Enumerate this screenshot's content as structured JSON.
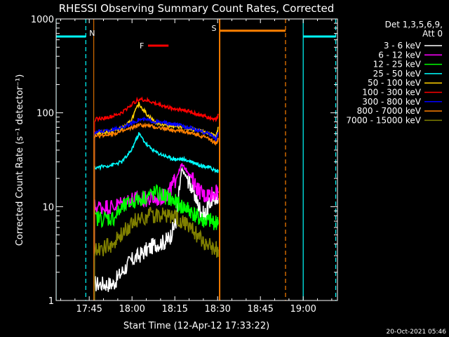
{
  "chart_data": {
    "type": "line",
    "title": "RHESSI Observing Summary Count Rates, Corrected",
    "xlabel": "Start Time (12-Apr-12 17:33:22)",
    "ylabel": "Corrected Count Rate (s⁻¹ detector⁻¹)",
    "yscale": "log",
    "ylim": [
      1,
      1000
    ],
    "x_units": "minutes after 17:33:22",
    "xlim": [
      0,
      98.6
    ],
    "x_ticks": [
      {
        "label": "17:45",
        "x": 11.6
      },
      {
        "label": "18:00",
        "x": 26.6
      },
      {
        "label": "18:15",
        "x": 41.6
      },
      {
        "label": "18:30",
        "x": 56.6
      },
      {
        "label": "18:45",
        "x": 71.6
      },
      {
        "label": "19:00",
        "x": 86.6
      }
    ],
    "y_ticks": [
      {
        "label": "1",
        "y": 1
      },
      {
        "label": "10",
        "y": 10
      },
      {
        "label": "100",
        "y": 100
      },
      {
        "label": "1000",
        "y": 1000
      }
    ],
    "legend_title": "Det 1,3,5,6,9, Att 0",
    "legend_title_lines": [
      "Det 1,3,5,6,9,",
      "Att 0"
    ],
    "legend_placement": "right",
    "series": [
      {
        "name": "3 - 6 keV",
        "color": "#ffffff",
        "x": [
          13.5,
          17,
          20,
          23,
          26,
          29,
          32,
          35,
          38,
          40,
          42,
          44,
          46,
          48,
          50,
          52,
          54,
          56,
          56.8
        ],
        "y": [
          1.5,
          1.5,
          1.5,
          2.0,
          2.6,
          3.0,
          3.5,
          4.0,
          4.2,
          4.8,
          7.0,
          25,
          20,
          15,
          10,
          8.0,
          11,
          13,
          12
        ]
      },
      {
        "name": "6 - 12 keV",
        "color": "#ff00ff",
        "x": [
          13.5,
          17,
          20,
          23,
          26,
          29,
          32,
          35,
          38,
          40,
          42,
          44,
          46,
          48,
          50,
          52,
          54,
          56,
          56.8
        ],
        "y": [
          10,
          10,
          10,
          11,
          12,
          12,
          12,
          12,
          13,
          15,
          20,
          28,
          24,
          19,
          15,
          13,
          14,
          14,
          14
        ]
      },
      {
        "name": "12 - 25 keV",
        "color": "#00ff00",
        "x": [
          13.5,
          17,
          20,
          23,
          26,
          29,
          32,
          35,
          38,
          40,
          42,
          44,
          46,
          48,
          50,
          52,
          54,
          56,
          56.8
        ],
        "y": [
          7.5,
          7.5,
          7.5,
          9.5,
          11,
          12,
          13,
          14,
          13,
          12,
          11,
          10,
          9.5,
          8.5,
          7.5,
          7.0,
          7.0,
          6.8,
          6.5
        ]
      },
      {
        "name": "25 - 50 keV",
        "color": "#00ffff",
        "x": [
          13.5,
          17,
          20,
          23,
          26,
          29,
          32,
          35,
          38,
          40,
          42,
          44,
          46,
          48,
          50,
          52,
          54,
          56,
          56.8
        ],
        "y": [
          26,
          27,
          28,
          30,
          38,
          60,
          45,
          38,
          35,
          33,
          32,
          32,
          31,
          30,
          28,
          27,
          26,
          24,
          24
        ]
      },
      {
        "name": "50 - 100 keV",
        "color": "#ffd000",
        "x": [
          13.5,
          17,
          20,
          23,
          26,
          29,
          32,
          35,
          38,
          40,
          42,
          44,
          46,
          48,
          50,
          52,
          54,
          56,
          56.8
        ],
        "y": [
          61,
          62,
          64,
          68,
          80,
          125,
          95,
          78,
          75,
          73,
          72,
          70,
          68,
          66,
          64,
          62,
          60,
          55,
          70
        ]
      },
      {
        "name": "100 - 300 keV",
        "color": "#ff0000",
        "x": [
          13.5,
          17,
          20,
          23,
          26,
          29,
          32,
          35,
          38,
          40,
          42,
          44,
          46,
          48,
          50,
          52,
          54,
          56,
          56.8
        ],
        "y": [
          85,
          88,
          92,
          100,
          120,
          140,
          135,
          125,
          118,
          112,
          110,
          108,
          105,
          100,
          95,
          92,
          88,
          85,
          95
        ]
      },
      {
        "name": "300 - 800 keV",
        "color": "#0000ff",
        "x": [
          13.5,
          17,
          20,
          23,
          26,
          29,
          32,
          35,
          38,
          40,
          42,
          44,
          46,
          48,
          50,
          52,
          54,
          56,
          56.8
        ],
        "y": [
          62,
          64,
          66,
          70,
          76,
          85,
          84,
          80,
          78,
          76,
          75,
          73,
          70,
          68,
          64,
          62,
          60,
          52,
          60
        ]
      },
      {
        "name": "800 - 7000 keV",
        "color": "#ff8000",
        "x": [
          13.5,
          17,
          20,
          23,
          26,
          29,
          32,
          35,
          38,
          40,
          42,
          44,
          46,
          48,
          50,
          52,
          54,
          56,
          56.8
        ],
        "y": [
          56,
          58,
          60,
          63,
          68,
          74,
          73,
          70,
          68,
          66,
          65,
          64,
          62,
          60,
          58,
          55,
          52,
          47,
          52
        ]
      },
      {
        "name": "7000 - 15000 keV",
        "color": "#808000",
        "x": [
          13.5,
          17,
          20,
          23,
          26,
          29,
          32,
          35,
          38,
          40,
          42,
          44,
          46,
          48,
          50,
          52,
          54,
          56,
          56.8
        ],
        "y": [
          3.5,
          3.6,
          4.0,
          5.0,
          6.5,
          7.5,
          8.0,
          8.2,
          8.2,
          8.0,
          7.5,
          7.0,
          6.5,
          5.5,
          4.8,
          4.2,
          3.8,
          3.5,
          3.5
        ]
      }
    ],
    "annotations": {
      "night": {
        "label": "N",
        "color": "#00ffff",
        "level": 650,
        "solid_x": [
          0,
          86.6
        ],
        "dashed_x": [
          10.4,
          98.0
        ],
        "bars": [
          [
            0,
            10.4
          ],
          [
            86.6,
            98.0
          ]
        ]
      },
      "saa": {
        "label": "S",
        "color": "#ff8000",
        "level": 750,
        "solid_x": [
          57.4
        ],
        "dashed_x": [
          80.4
        ],
        "bars": [
          [
            57.4,
            80.4
          ]
        ]
      },
      "flare": {
        "label": "F",
        "color": "#ff0000",
        "level": 520,
        "bars": [
          [
            32.2,
            39.4
          ]
        ]
      },
      "data_gap_x": [
        13.2,
        57.2
      ]
    }
  },
  "footer": {
    "timestamp": "20-Oct-2021 05:46"
  }
}
